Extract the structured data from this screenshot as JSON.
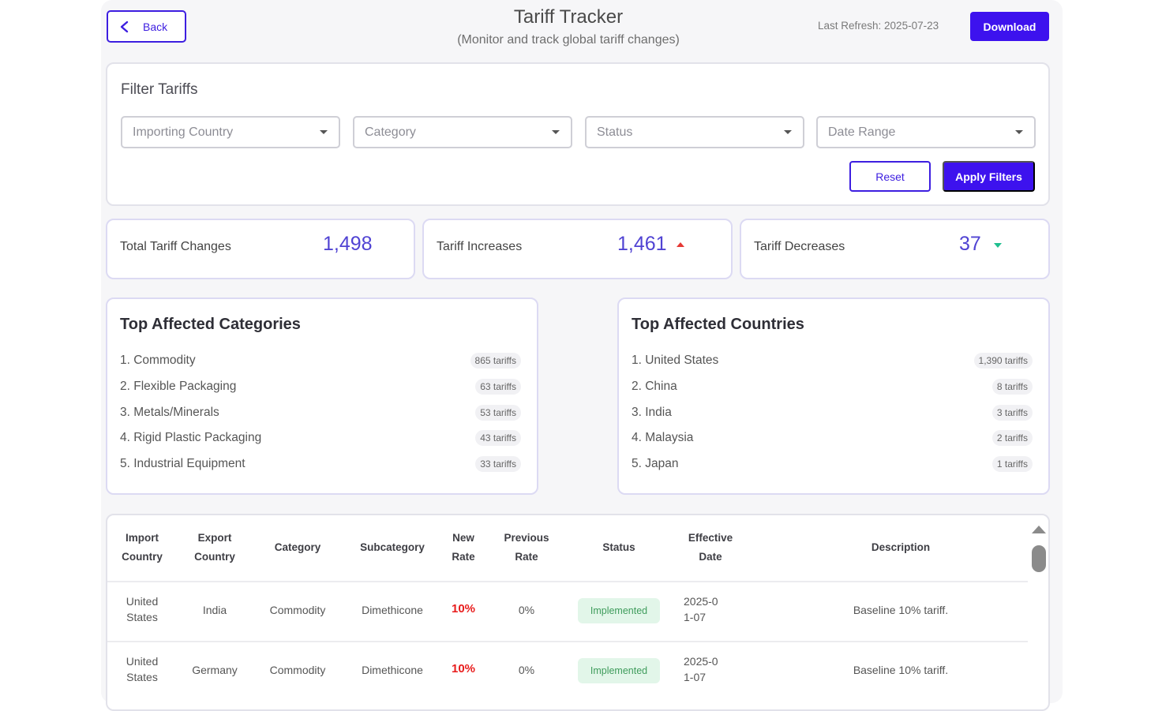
{
  "header": {
    "back_label": "Back",
    "title": "Tariff Tracker",
    "subtitle": "(Monitor and track global tariff changes)",
    "last_refresh": "Last Refresh: 2025-07-23",
    "download_label": "Download"
  },
  "filters": {
    "title": "Filter Tariffs",
    "selects": [
      {
        "placeholder": "Importing Country"
      },
      {
        "placeholder": "Category"
      },
      {
        "placeholder": "Status"
      },
      {
        "placeholder": "Date Range"
      }
    ],
    "reset_label": "Reset",
    "apply_label": "Apply Filters"
  },
  "stats": {
    "total": {
      "label": "Total Tariff Changes",
      "value": "1,498"
    },
    "increases": {
      "label": "Tariff Increases",
      "value": "1,461"
    },
    "decreases": {
      "label": "Tariff Decreases",
      "value": "37"
    }
  },
  "colors": {
    "accent": "#3d12ee",
    "increase": "#e53935",
    "decrease": "#1fbf8f",
    "value": "#5043d3"
  },
  "categories": {
    "title": "Top Affected Categories",
    "items": [
      {
        "name": "1. Commodity",
        "count": "865 tariffs"
      },
      {
        "name": "2. Flexible Packaging",
        "count": "63 tariffs"
      },
      {
        "name": "3. Metals/Minerals",
        "count": "53 tariffs"
      },
      {
        "name": "4. Rigid Plastic Packaging",
        "count": "43 tariffs"
      },
      {
        "name": "5. Industrial Equipment",
        "count": "33 tariffs"
      }
    ]
  },
  "countries": {
    "title": "Top Affected Countries",
    "items": [
      {
        "name": "1. United States",
        "count": "1,390 tariffs"
      },
      {
        "name": "2. China",
        "count": "8 tariffs"
      },
      {
        "name": "3. India",
        "count": "3 tariffs"
      },
      {
        "name": "4. Malaysia",
        "count": "2 tariffs"
      },
      {
        "name": "5. Japan",
        "count": "1 tariffs"
      }
    ]
  },
  "table": {
    "headers": [
      "Import Country",
      "Export Country",
      "Category",
      "Subcategory",
      "New Rate",
      "Previous Rate",
      "Status",
      "Effective Date",
      "Description"
    ],
    "rows": [
      {
        "import": "United States",
        "export": "India",
        "category": "Commodity",
        "subcategory": "Dimethicone",
        "new_rate": "10%",
        "prev_rate": "0%",
        "status": "Implemented",
        "date": "2025-01-07",
        "description": "Baseline 10% tariff."
      },
      {
        "import": "United States",
        "export": "Germany",
        "category": "Commodity",
        "subcategory": "Dimethicone",
        "new_rate": "10%",
        "prev_rate": "0%",
        "status": "Implemented",
        "date": "2025-01-07",
        "description": "Baseline 10% tariff."
      }
    ]
  }
}
